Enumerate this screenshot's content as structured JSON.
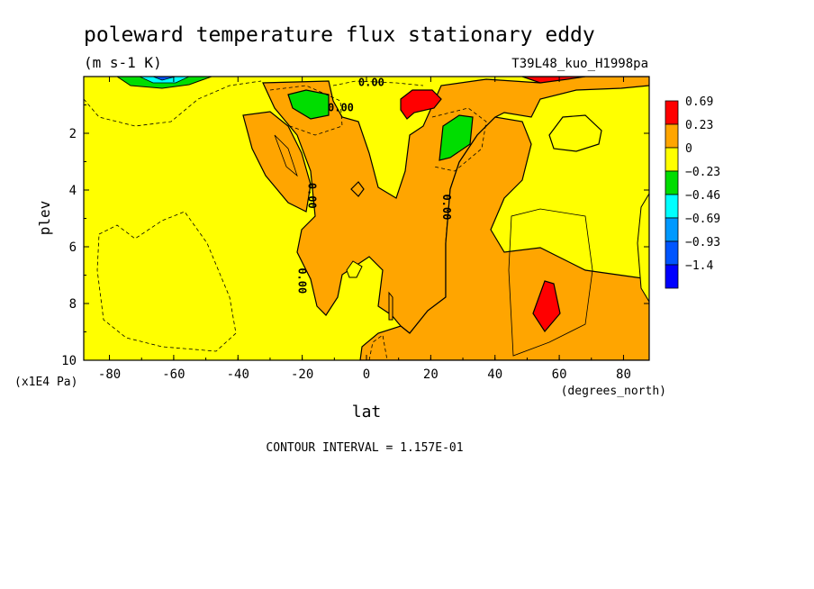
{
  "chart_data": {
    "type": "heatmap",
    "title": "poleward temperature flux stationary eddy",
    "units": "(m s-1 K)",
    "run_label": "T39L48_kuo_H1998pa",
    "xlabel": "lat",
    "xunits": "(degrees_north)",
    "ylabel": "plev",
    "yunits": "(x1E4 Pa)",
    "xlim": [
      -88,
      88
    ],
    "ylim": [
      0,
      10
    ],
    "y_reversed": true,
    "x_ticks": [
      {
        "value": -80,
        "label": "-80"
      },
      {
        "value": -60,
        "label": "-60"
      },
      {
        "value": -40,
        "label": "-40"
      },
      {
        "value": -20,
        "label": "-20"
      },
      {
        "value": 0,
        "label": "0"
      },
      {
        "value": 20,
        "label": "20"
      },
      {
        "value": 40,
        "label": "40"
      },
      {
        "value": 60,
        "label": "60"
      },
      {
        "value": 80,
        "label": "80"
      }
    ],
    "y_ticks": [
      {
        "value": 2,
        "label": "2"
      },
      {
        "value": 4,
        "label": "4"
      },
      {
        "value": 6,
        "label": "6"
      },
      {
        "value": 8,
        "label": "8"
      },
      {
        "value": 10,
        "label": "10"
      }
    ],
    "contour_interval_text": "CONTOUR INTERVAL = 1.157E-01",
    "legend": [
      {
        "label": "0.69",
        "color": "#ff0000"
      },
      {
        "label": "0.23",
        "color": "#ffa500"
      },
      {
        "label": "0",
        "color": "#ffff00"
      },
      {
        "label": "−0.23",
        "color": "#00dd00"
      },
      {
        "label": "−0.46",
        "color": "#00ffff"
      },
      {
        "label": "−0.69",
        "color": "#0099ff"
      },
      {
        "label": "−0.93",
        "color": "#0055ff"
      },
      {
        "label": "−1.4",
        "color": "#0000ff"
      }
    ],
    "contour_labels": [
      {
        "text": "0.00",
        "lat": 1.5,
        "plev": 0.2
      },
      {
        "text": "0.00",
        "lat": -8,
        "plev": 1.1
      },
      {
        "text": "0.00",
        "lat": -17,
        "plev": 4.2
      },
      {
        "text": "0.00",
        "lat": 25,
        "plev": 4.6
      },
      {
        "text": "0.00",
        "lat": -20,
        "plev": 7.2
      }
    ]
  }
}
